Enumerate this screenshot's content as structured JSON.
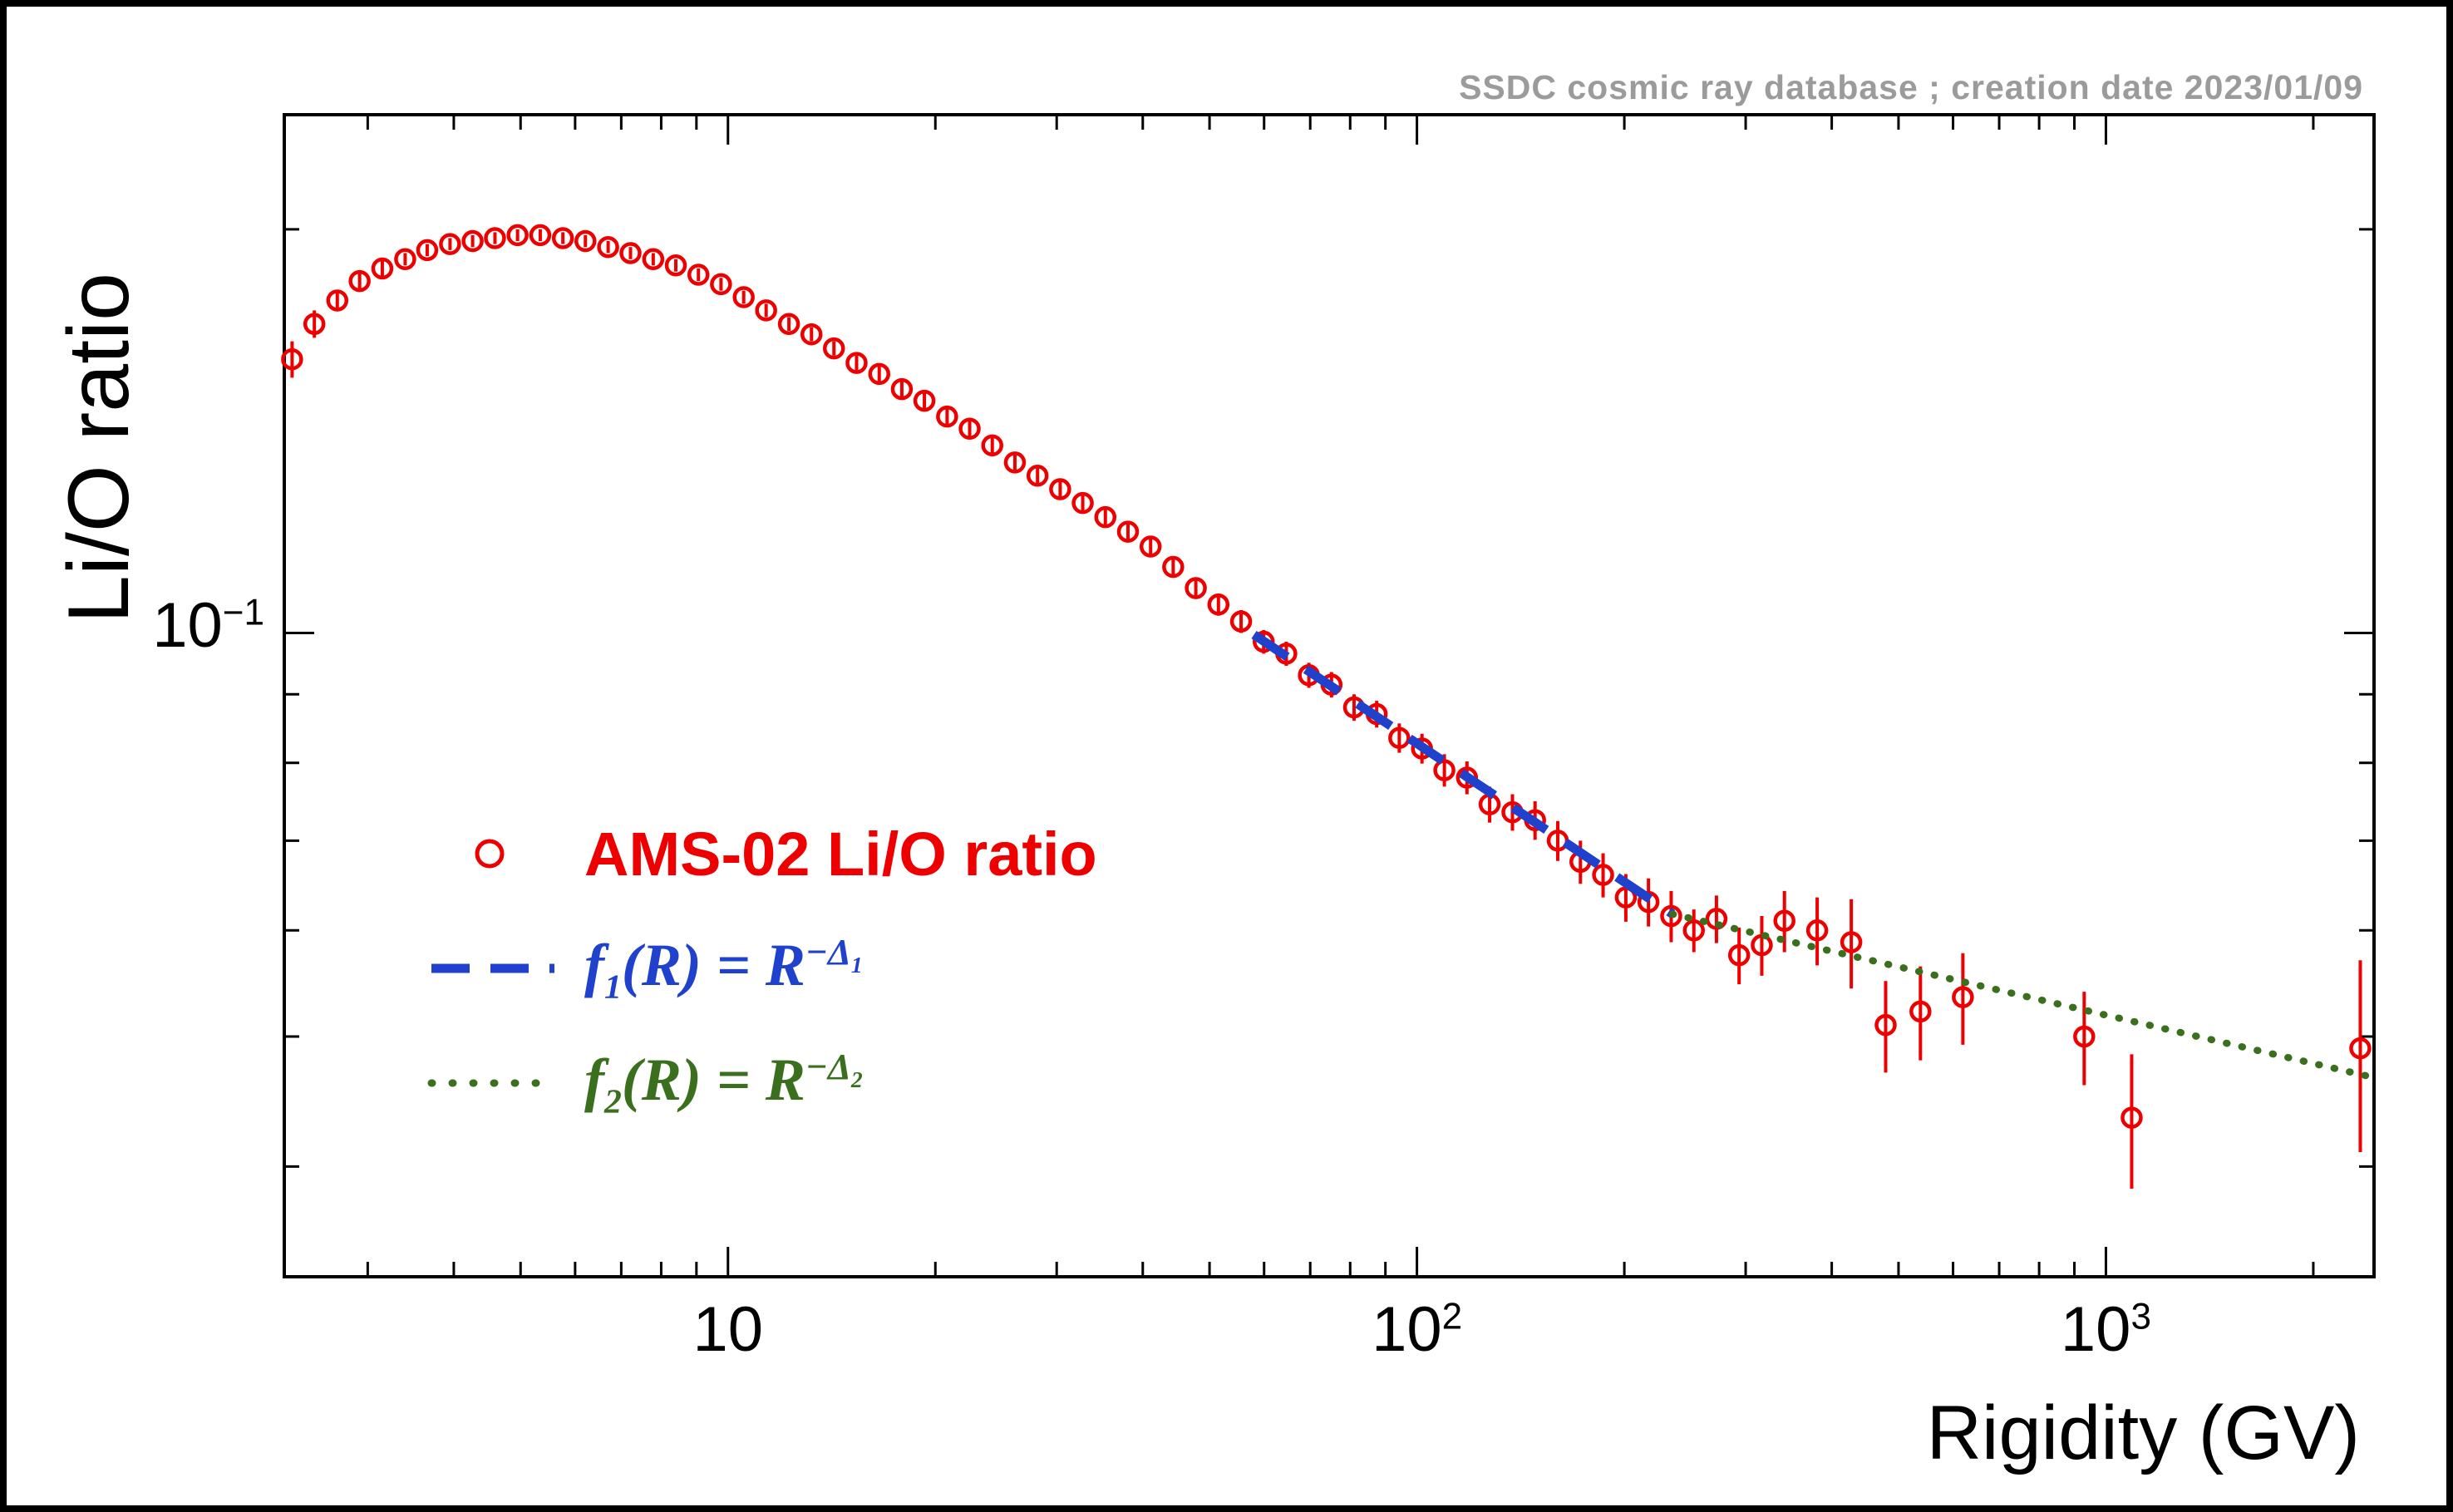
{
  "annotation": {
    "text": "SSDC cosmic ray database ; creation date 2023/01/09",
    "color": "#9b9b9b"
  },
  "axes": {
    "x": {
      "title": "Rigidity (GV)",
      "scale": "log",
      "range": [
        2.27,
        2450
      ],
      "tick_labels": [
        {
          "value": 10,
          "base": "10",
          "exp": ""
        },
        {
          "value": 100,
          "base": "10",
          "exp": "2"
        },
        {
          "value": 1000,
          "base": "10",
          "exp": "3"
        }
      ]
    },
    "y": {
      "title": "Li/O ratio",
      "scale": "log",
      "range": [
        0.0331,
        0.2435
      ],
      "tick_labels": [
        {
          "value": 0.1,
          "base": "10",
          "exp": "−1"
        }
      ]
    }
  },
  "chart_data": {
    "type": "scatter",
    "title": "",
    "xlabel": "Rigidity (GV)",
    "ylabel": "Li/O ratio",
    "x_scale": "log",
    "y_scale": "log",
    "xlim": [
      2.27,
      2450
    ],
    "ylim": [
      0.0331,
      0.2435
    ],
    "grid": false,
    "legend_position": "inside-left-middle",
    "series": [
      {
        "name": "AMS-02 Li/O ratio",
        "type": "scatter",
        "marker": "open-circle",
        "color": "#ee0000",
        "points": [
          [
            2.33,
            0.16,
            0.005
          ],
          [
            2.51,
            0.17,
            0.004
          ],
          [
            2.71,
            0.177,
            0.003
          ],
          [
            2.92,
            0.183,
            0.003
          ],
          [
            3.15,
            0.187,
            0.003
          ],
          [
            3.4,
            0.19,
            0.002
          ],
          [
            3.66,
            0.193,
            0.002
          ],
          [
            3.95,
            0.195,
            0.002
          ],
          [
            4.26,
            0.196,
            0.002
          ],
          [
            4.59,
            0.197,
            0.002
          ],
          [
            4.95,
            0.198,
            0.002
          ],
          [
            5.34,
            0.198,
            0.002
          ],
          [
            5.76,
            0.197,
            0.002
          ],
          [
            6.21,
            0.196,
            0.002
          ],
          [
            6.7,
            0.194,
            0.002
          ],
          [
            7.22,
            0.192,
            0.002
          ],
          [
            7.79,
            0.19,
            0.002
          ],
          [
            8.4,
            0.188,
            0.002
          ],
          [
            9.06,
            0.185,
            0.002
          ],
          [
            9.77,
            0.182,
            0.002
          ],
          [
            10.54,
            0.178,
            0.002
          ],
          [
            11.36,
            0.174,
            0.002
          ],
          [
            12.26,
            0.17,
            0.002
          ],
          [
            13.22,
            0.167,
            0.002
          ],
          [
            14.25,
            0.163,
            0.002
          ],
          [
            15.37,
            0.159,
            0.002
          ],
          [
            16.58,
            0.156,
            0.002
          ],
          [
            17.88,
            0.152,
            0.002
          ],
          [
            19.28,
            0.149,
            0.002
          ],
          [
            20.8,
            0.145,
            0.002
          ],
          [
            22.43,
            0.142,
            0.002
          ],
          [
            24.19,
            0.138,
            0.002
          ],
          [
            26.09,
            0.134,
            0.002
          ],
          [
            28.14,
            0.131,
            0.002
          ],
          [
            30.35,
            0.128,
            0.002
          ],
          [
            32.73,
            0.125,
            0.002
          ],
          [
            35.3,
            0.122,
            0.002
          ],
          [
            38.07,
            0.119,
            0.002
          ],
          [
            41.06,
            0.116,
            0.002
          ],
          [
            44.28,
            0.112,
            0.002
          ],
          [
            47.76,
            0.108,
            0.002
          ],
          [
            51.51,
            0.105,
            0.002
          ],
          [
            55.56,
            0.102,
            0.002
          ],
          [
            59.92,
            0.0985,
            0.002
          ],
          [
            64.62,
            0.0965,
            0.002
          ],
          [
            69.69,
            0.093,
            0.002
          ],
          [
            75.16,
            0.0915,
            0.002
          ],
          [
            81.05,
            0.088,
            0.002
          ],
          [
            87.41,
            0.087,
            0.002
          ],
          [
            94.27,
            0.0835,
            0.0021
          ],
          [
            101.7,
            0.082,
            0.0021
          ],
          [
            109.6,
            0.079,
            0.0022
          ],
          [
            118.2,
            0.078,
            0.0022
          ],
          [
            127.5,
            0.0745,
            0.0023
          ],
          [
            137.6,
            0.0735,
            0.0023
          ],
          [
            148.4,
            0.0725,
            0.0024
          ],
          [
            160.1,
            0.07,
            0.0024
          ],
          [
            172.7,
            0.0675,
            0.0025
          ],
          [
            186.3,
            0.066,
            0.0025
          ],
          [
            201.0,
            0.0635,
            0.0026
          ],
          [
            216.8,
            0.063,
            0.0026
          ],
          [
            233.9,
            0.0615,
            0.0027
          ],
          [
            252.3,
            0.06,
            0.0022
          ],
          [
            272.1,
            0.0612,
            0.0025
          ],
          [
            293.5,
            0.0575,
            0.0028
          ],
          [
            316.6,
            0.0585,
            0.003
          ],
          [
            341.5,
            0.061,
            0.0032
          ],
          [
            381.0,
            0.06,
            0.0035
          ],
          [
            427.0,
            0.0588,
            0.0045
          ],
          [
            479.0,
            0.051,
            0.004
          ],
          [
            538.0,
            0.0522,
            0.0042
          ],
          [
            620.0,
            0.0535,
            0.0042
          ],
          [
            930.0,
            0.05,
            0.004
          ],
          [
            1090.0,
            0.0435,
            0.005
          ],
          [
            2340.0,
            0.049,
            0.008
          ]
        ],
        "point_format": "[rigidity_GV, LiO_ratio, error]"
      },
      {
        "name": "f1(R) = R^(−Δ1)",
        "type": "line",
        "style": "dashed",
        "color": "#1f41cc",
        "points": [
          [
            58,
            0.0997
          ],
          [
            235,
            0.0617
          ]
        ]
      },
      {
        "name": "f2(R) = R^(−Δ2)",
        "type": "line",
        "style": "dotted",
        "color": "#3a701d",
        "points": [
          [
            235,
            0.0617
          ],
          [
            2450,
            0.0466
          ]
        ]
      }
    ]
  },
  "legend": {
    "items": [
      {
        "id": "ams02",
        "label": "AMS-02 Li/O ratio",
        "color": "#ee0000",
        "marker": "open-circle"
      },
      {
        "id": "f1",
        "color": "#1f41cc",
        "line": "dashed",
        "math": {
          "f": "f",
          "fsub": "1",
          "mid": "(R) = R",
          "sup": "−Δ",
          "supsub": "1"
        }
      },
      {
        "id": "f2",
        "color": "#3a701d",
        "line": "dotted",
        "math": {
          "f": "f",
          "fsub": "2",
          "mid": "(R) = R",
          "sup": "−Δ",
          "supsub": "2"
        }
      }
    ]
  }
}
